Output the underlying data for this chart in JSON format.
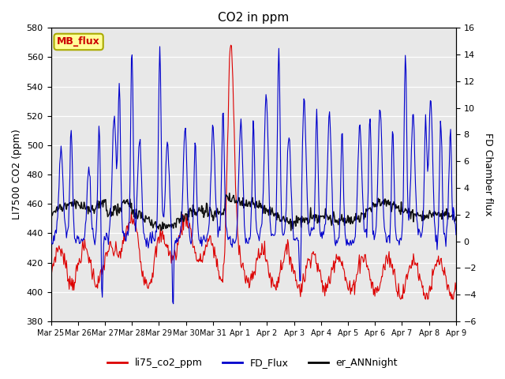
{
  "title": "CO2 in ppm",
  "ylabel_left": "LI7500 CO2 (ppm)",
  "ylabel_right": "FD Chamber flux",
  "ylim_left": [
    380,
    580
  ],
  "ylim_right": [
    -6,
    16
  ],
  "yticks_left": [
    380,
    400,
    420,
    440,
    460,
    480,
    500,
    520,
    540,
    560,
    580
  ],
  "yticks_right": [
    -6,
    -4,
    -2,
    0,
    2,
    4,
    6,
    8,
    10,
    12,
    14,
    16
  ],
  "xtick_labels": [
    "Mar 25",
    "Mar 26",
    "Mar 27",
    "Mar 28",
    "Mar 29",
    "Mar 30",
    "Mar 31",
    "Apr 1",
    "Apr 2",
    "Apr 3",
    "Apr 4",
    "Apr 5",
    "Apr 6",
    "Apr 7",
    "Apr 8",
    "Apr 9"
  ],
  "legend_labels": [
    "li75_co2_ppm",
    "FD_Flux",
    "er_ANNnight"
  ],
  "legend_colors": [
    "#dd0000",
    "#0000cc",
    "#000000"
  ],
  "annotation_text": "MB_flux",
  "annotation_color": "#cc0000",
  "annotation_bg": "#ffff99",
  "bg_color": "#e8e8e8",
  "grid_color": "#ffffff",
  "line_red": "#dd0000",
  "line_blue": "#0000cc",
  "line_black": "#111111"
}
